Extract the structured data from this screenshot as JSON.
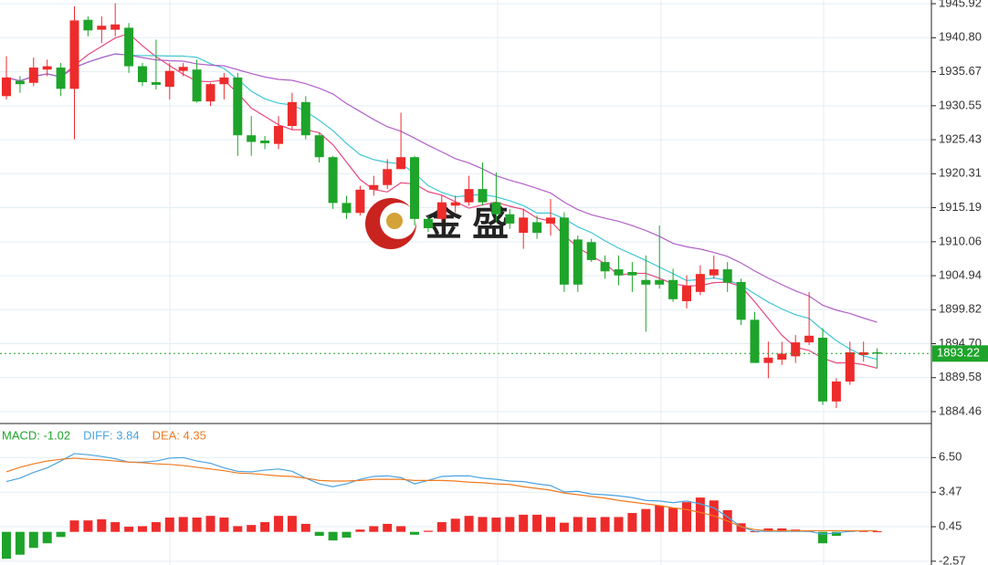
{
  "chart_data": {
    "type": "candlestick",
    "watermark": "金 盛",
    "ylim": [
      1882.81,
      1946.48
    ],
    "yticks": [
      1945.92,
      {
        "value": 1940.8,
        "label": "1940.80"
      },
      1935.67,
      1930.55,
      1925.43,
      1920.31,
      1915.19,
      1910.06,
      1904.94,
      1899.82,
      {
        "value": 1894.7,
        "label": "1894.70"
      },
      1889.58,
      1884.46
    ],
    "grid": true,
    "up_color": "#ee2b2b",
    "down_color": "#1ea42a",
    "last_price": 1893.22,
    "last_price_color": "#1ea42a",
    "moving_averages": [
      {
        "period": 5,
        "color": "#e8487f"
      },
      {
        "period": 10,
        "color": "#3fc6d6"
      },
      {
        "period": 20,
        "color": "#b25fc9"
      }
    ],
    "ohlc": [
      [
        1932.0,
        1938,
        1931.5,
        1934.8
      ],
      [
        1934.3,
        1935,
        1932.5,
        1933.8
      ],
      [
        1934,
        1937.8,
        1933.5,
        1936.3
      ],
      [
        1936,
        1937.5,
        1935,
        1936.5
      ],
      [
        1936.3,
        1937,
        1932,
        1933.1
      ],
      [
        1933.1,
        1945.5,
        1925.5,
        1943.4
      ],
      [
        1943.5,
        1944,
        1941,
        1941.9
      ],
      [
        1942,
        1944,
        1940,
        1942.6
      ],
      [
        1942,
        1946,
        1941,
        1942.8
      ],
      [
        1942.3,
        1943,
        1935.5,
        1936.5
      ],
      [
        1936.5,
        1937,
        1933.5,
        1934.1
      ],
      [
        1934.1,
        1940.5,
        1933,
        1933.7
      ],
      [
        1933.4,
        1937,
        1931.5,
        1935.8
      ],
      [
        1935.8,
        1937,
        1935,
        1936.4
      ],
      [
        1936,
        1937.5,
        1931,
        1931.2
      ],
      [
        1931.2,
        1934,
        1930.5,
        1933.8
      ],
      [
        1933.8,
        1935.5,
        1931.5,
        1934.8
      ],
      [
        1934.8,
        1935.5,
        1923,
        1926.1
      ],
      [
        1926.1,
        1929,
        1923,
        1925.1
      ],
      [
        1925.3,
        1926,
        1924,
        1924.9
      ],
      [
        1924.8,
        1929,
        1924,
        1927.5
      ],
      [
        1927.5,
        1932.5,
        1927,
        1931.1
      ],
      [
        1931.1,
        1932,
        1925.5,
        1926.1
      ],
      [
        1926.1,
        1926.5,
        1922,
        1922.8
      ],
      [
        1922.8,
        1923,
        1915,
        1915.9
      ],
      [
        1915.9,
        1917,
        1913.5,
        1914.4
      ],
      [
        1914.4,
        1918.5,
        1914,
        1917.9
      ],
      [
        1917.9,
        1920,
        1917,
        1918.6
      ],
      [
        1918.6,
        1922.5,
        1918,
        1921.0
      ],
      [
        1921,
        1929.5,
        1921,
        1922.8
      ],
      [
        1922.8,
        1923,
        1912.5,
        1913.5
      ],
      [
        1913.5,
        1914,
        1911.5,
        1912.1
      ],
      [
        1913.5,
        1917,
        1913,
        1916
      ],
      [
        1915.5,
        1917,
        1914.5,
        1916.0
      ],
      [
        1916,
        1920,
        1915.5,
        1918
      ],
      [
        1918,
        1922,
        1915.5,
        1916
      ],
      [
        1916,
        1920.5,
        1913,
        1914.2
      ],
      [
        1914.2,
        1915,
        1912,
        1912.8
      ],
      [
        1911.4,
        1915,
        1909,
        1913.7
      ],
      [
        1913,
        1914,
        1910.5,
        1911.4
      ],
      [
        1912.8,
        1916.5,
        1911,
        1913.7
      ],
      [
        1913.7,
        1914.5,
        1902.5,
        1903.6
      ],
      [
        1910.4,
        1911,
        1902.5,
        1903.6
      ],
      [
        1910,
        1910.5,
        1907,
        1907.3
      ],
      [
        1907,
        1908,
        1904.5,
        1905.6
      ],
      [
        1905.9,
        1908,
        1903.5,
        1905
      ],
      [
        1905.5,
        1907,
        1902.5,
        1905
      ],
      [
        1904.3,
        1908,
        1896.5,
        1903.6
      ],
      [
        1904.3,
        1912.5,
        1903,
        1903.6
      ],
      [
        1904.3,
        1906,
        1901,
        1901.4
      ],
      [
        1901.1,
        1905,
        1900,
        1903.4
      ],
      [
        1902.5,
        1906.5,
        1902,
        1905.2
      ],
      [
        1905,
        1908,
        1904.5,
        1905.9
      ],
      [
        1905.9,
        1907,
        1902.5,
        1903.9
      ],
      [
        1904,
        1904.5,
        1897.5,
        1898.3
      ],
      [
        1898.3,
        1899.5,
        1891.8,
        1891.8
      ],
      [
        1891.8,
        1895,
        1889.5,
        1892.6
      ],
      [
        1892.3,
        1895,
        1891.5,
        1893.2
      ],
      [
        1892.8,
        1896,
        1891.8,
        1894.9
      ],
      [
        1894.9,
        1902.5,
        1894.5,
        1895.9
      ],
      [
        1895.6,
        1897,
        1885.5,
        1886.0
      ],
      [
        1886,
        1889.5,
        1885,
        1889
      ],
      [
        1889,
        1895,
        1888.5,
        1893.4
      ],
      [
        1893,
        1895,
        1892,
        1893.4
      ],
      [
        1893.4,
        1894,
        1891,
        1893.2
      ]
    ],
    "macd": {
      "ylim": [
        -2.9,
        9.4
      ],
      "yticks": [
        {
          "value": 6.5,
          "label": "6.50"
        },
        3.47,
        0.45,
        -2.57
      ],
      "legend": [
        {
          "text": "MACD: -1.02",
          "color": "#1ea42a"
        },
        {
          "text": "DIFF: 3.84",
          "color": "#4aa3e0"
        },
        {
          "text": "DEA: 4.35",
          "color": "#f07a20"
        }
      ],
      "histogram": [
        -2.35,
        -2.0,
        -1.4,
        -1.0,
        -0.45,
        1.0,
        1.0,
        1.1,
        0.85,
        0.45,
        0.5,
        0.85,
        1.25,
        1.3,
        1.25,
        1.4,
        1.25,
        0.5,
        0.6,
        0.85,
        1.4,
        1.4,
        0.7,
        -0.35,
        -0.75,
        -0.5,
        0.2,
        0.5,
        0.7,
        0.5,
        -0.25,
        0.1,
        0.85,
        1.15,
        1.4,
        1.3,
        1.25,
        1.3,
        1.5,
        1.5,
        1.3,
        0.8,
        1.3,
        1.25,
        1.3,
        1.3,
        1.65,
        2.0,
        2.3,
        2.1,
        2.6,
        3.0,
        2.75,
        1.9,
        0.75,
        0.05,
        0.3,
        0.3,
        0.2,
        0.1,
        -1.0,
        -0.35,
        0.1,
        0.1,
        0.05
      ],
      "diff": [
        4.4,
        4.7,
        5.2,
        5.6,
        6.2,
        6.85,
        6.75,
        6.6,
        6.4,
        6.1,
        6.1,
        6.2,
        6.45,
        6.5,
        6.2,
        6.0,
        5.6,
        5.3,
        5.25,
        5.4,
        5.5,
        5.3,
        4.7,
        4.2,
        3.95,
        4.2,
        4.6,
        4.85,
        4.9,
        4.75,
        4.2,
        4.5,
        4.85,
        4.9,
        4.9,
        4.7,
        4.6,
        4.45,
        4.4,
        4.2,
        4.05,
        3.5,
        3.55,
        3.3,
        3.25,
        3.15,
        3.0,
        2.75,
        2.7,
        2.55,
        2.7,
        2.45,
        2.1,
        1.3,
        0.45,
        0.05,
        0.05,
        0.05,
        0.05,
        0.05,
        -0.2,
        -0.1,
        0.05,
        0.1,
        0.1
      ],
      "dea": [
        5.25,
        5.65,
        5.95,
        6.2,
        6.35,
        6.45,
        6.35,
        6.3,
        6.2,
        6.1,
        6.05,
        5.95,
        5.9,
        5.8,
        5.65,
        5.5,
        5.35,
        5.15,
        5.1,
        5.0,
        4.9,
        4.85,
        4.7,
        4.5,
        4.45,
        4.45,
        4.5,
        4.6,
        4.6,
        4.6,
        4.5,
        4.5,
        4.5,
        4.45,
        4.35,
        4.3,
        4.2,
        4.15,
        3.95,
        3.8,
        3.65,
        3.4,
        3.25,
        3.1,
        2.95,
        2.75,
        2.6,
        2.45,
        2.3,
        2.1,
        1.95,
        1.7,
        1.4,
        0.95,
        0.45,
        0.2,
        0.1,
        0.1,
        0.1,
        0.1,
        0.1,
        0.1,
        0.1,
        0.1,
        0.1
      ]
    }
  }
}
